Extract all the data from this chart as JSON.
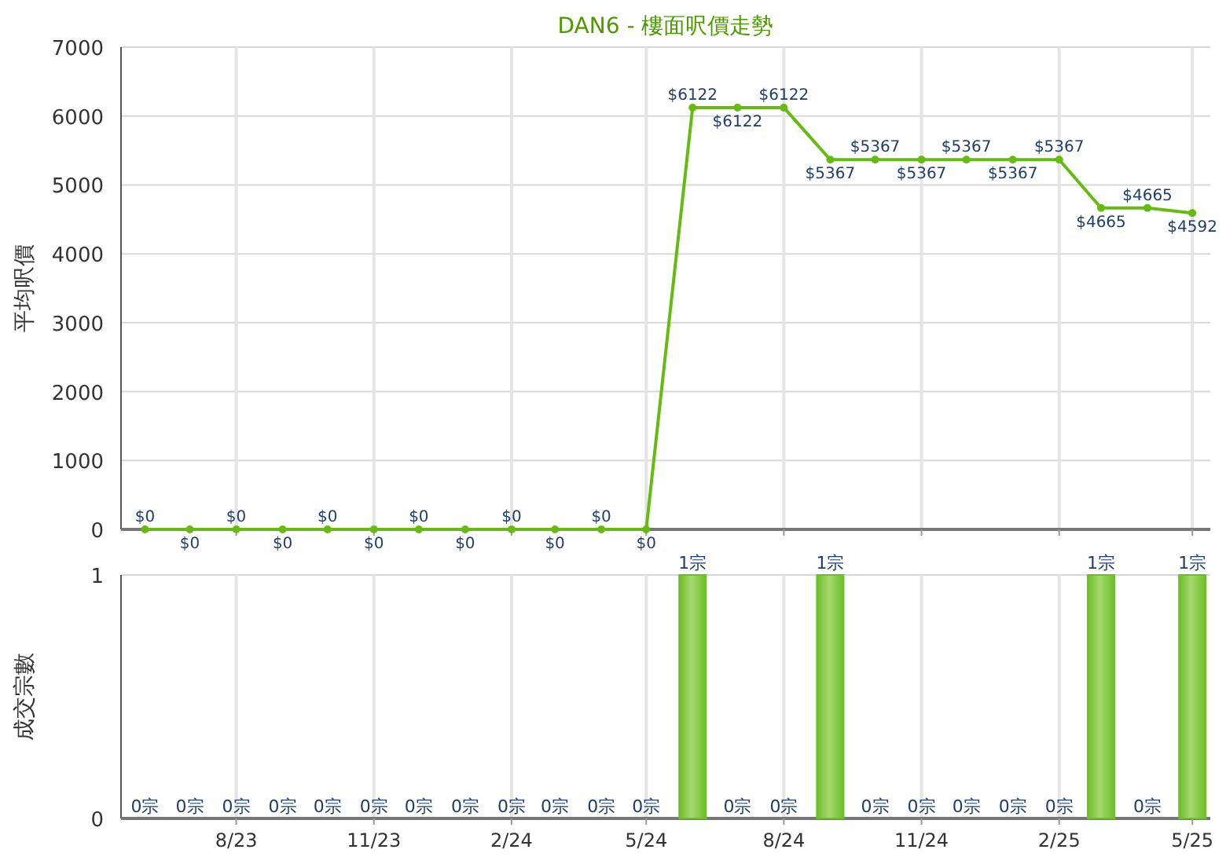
{
  "chart_data": [
    {
      "type": "line",
      "title": "DAN6 - 樓面呎價走勢",
      "ylabel": "平均呎價",
      "x": [
        "2023-06",
        "2023-07",
        "2023-08",
        "2023-09",
        "2023-10",
        "2023-11",
        "2023-12",
        "2024-01",
        "2024-02",
        "2024-03",
        "2024-04",
        "2024-05",
        "2024-06",
        "2024-07",
        "2024-08",
        "2024-09",
        "2024-10",
        "2024-11",
        "2024-12",
        "2025-01",
        "2025-02",
        "2025-03",
        "2025-04",
        "2025-05"
      ],
      "series": [
        {
          "color": "#66bb11",
          "values": [
            0,
            0,
            0,
            0,
            0,
            0,
            0,
            0,
            0,
            0,
            0,
            0,
            6122,
            6122,
            6122,
            5367,
            5367,
            5367,
            5367,
            5367,
            5367,
            4665,
            4665,
            4592
          ],
          "value_labels": [
            "$0",
            "$0",
            "$0",
            "$0",
            "$0",
            "$0",
            "$0",
            "$0",
            "$0",
            "$0",
            "$0",
            "$0",
            "$6122",
            "$6122",
            "$6122",
            "$5367",
            "$5367",
            "$5367",
            "$5367",
            "$5367",
            "$5367",
            "$4665",
            "$4665",
            "$4592"
          ]
        }
      ],
      "xlim": [
        "2023-05-16",
        "2025-05-13"
      ],
      "xticks": [
        {
          "value": "2023-08",
          "label": null
        },
        {
          "value": "2023-11",
          "label": null
        },
        {
          "value": "2024-02",
          "label": null
        },
        {
          "value": "2024-05",
          "label": null
        },
        {
          "value": "2024-08",
          "label": null
        },
        {
          "value": "2024-11",
          "label": null
        },
        {
          "value": "2025-02",
          "label": null
        },
        {
          "value": "2025-05",
          "label": null
        }
      ],
      "ylim": [
        0,
        7000
      ],
      "yticks": [
        0,
        1000,
        2000,
        3000,
        4000,
        5000,
        6000,
        7000
      ],
      "grid": true,
      "marker": "circle",
      "line_style": "solid",
      "tick_labels": "y"
    },
    {
      "type": "bar",
      "ylabel": "成交宗數",
      "x": [
        "2023-06",
        "2023-07",
        "2023-08",
        "2023-09",
        "2023-10",
        "2023-11",
        "2023-12",
        "2024-01",
        "2024-02",
        "2024-03",
        "2024-04",
        "2024-05",
        "2024-06",
        "2024-07",
        "2024-08",
        "2024-09",
        "2024-10",
        "2024-11",
        "2024-12",
        "2025-01",
        "2025-02",
        "2025-03",
        "2025-04",
        "2025-05"
      ],
      "series": [
        {
          "color": "#6cbf2a",
          "values": [
            0,
            0,
            0,
            0,
            0,
            0,
            0,
            0,
            0,
            0,
            0,
            0,
            1,
            0,
            0,
            1,
            0,
            0,
            0,
            0,
            0,
            1,
            0,
            1
          ],
          "value_labels": [
            "0宗",
            "0宗",
            "0宗",
            "0宗",
            "0宗",
            "0宗",
            "0宗",
            "0宗",
            "0宗",
            "0宗",
            "0宗",
            "0宗",
            "1宗",
            "0宗",
            "0宗",
            "1宗",
            "0宗",
            "0宗",
            "0宗",
            "0宗",
            "0宗",
            "1宗",
            "0宗",
            "1宗"
          ]
        }
      ],
      "xlim": [
        "2023-05-16",
        "2025-05-13"
      ],
      "xticks": [
        {
          "value": "2023-08",
          "label": "8/23"
        },
        {
          "value": "2023-11",
          "label": "11/23"
        },
        {
          "value": "2024-02",
          "label": "2/24"
        },
        {
          "value": "2024-05",
          "label": "5/24"
        },
        {
          "value": "2024-08",
          "label": "8/24"
        },
        {
          "value": "2024-11",
          "label": "11/24"
        },
        {
          "value": "2025-02",
          "label": "2/25"
        },
        {
          "value": "2025-05",
          "label": "5/25"
        }
      ],
      "ylim": [
        0,
        1
      ],
      "yticks": [
        0,
        1
      ],
      "grid": true
    }
  ]
}
